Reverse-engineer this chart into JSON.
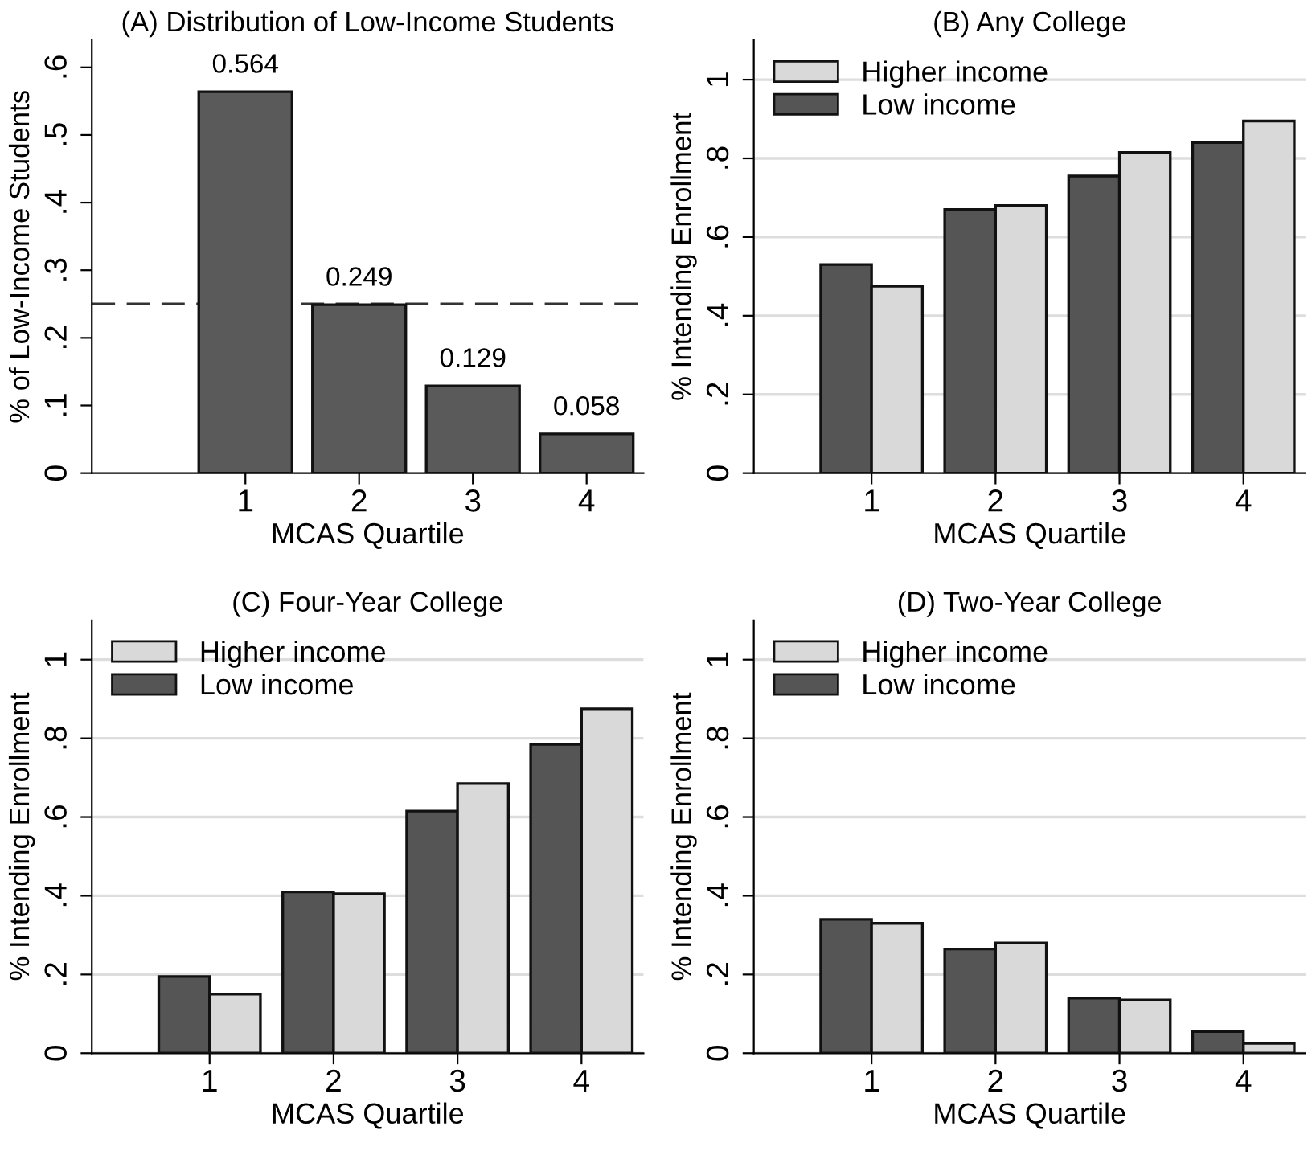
{
  "chart_data": [
    {
      "type": "bar",
      "title": "(A) Distribution of Low-Income Students",
      "xlabel": "MCAS Quartile",
      "ylabel": "% of Low-Income Students",
      "categories": [
        "1",
        "2",
        "3",
        "4"
      ],
      "values": [
        0.564,
        0.249,
        0.129,
        0.058
      ],
      "color": "#5a5a5a",
      "data_labels": true,
      "ylim": [
        0,
        0.64
      ],
      "yticks": [
        0,
        {
          "value": 0.1,
          "label": ".1"
        },
        {
          "value": 0.2,
          "label": ".2"
        },
        {
          "value": 0.3,
          "label": ".3"
        },
        {
          "value": 0.4,
          "label": ".4"
        },
        {
          "value": 0.5,
          "label": ".5"
        },
        {
          "value": 0.6,
          "label": ".6"
        }
      ],
      "ref_lines": [
        {
          "axis": "y",
          "value": 0.25,
          "line_style": "dashed",
          "color": "#333333"
        }
      ],
      "grid": false,
      "legend": false
    },
    {
      "type": "bar",
      "title": "(B) Any College",
      "xlabel": "MCAS Quartile",
      "ylabel": "% Intending Enrollment",
      "categories": [
        "1",
        "2",
        "3",
        "4"
      ],
      "series": [
        {
          "name": "Low income",
          "color": "#555555",
          "values": [
            0.53,
            0.67,
            0.755,
            0.84
          ]
        },
        {
          "name": "Higher income",
          "color": "#d9d9d9",
          "values": [
            0.475,
            0.68,
            0.815,
            0.895
          ]
        }
      ],
      "ylim": [
        0,
        1.1
      ],
      "yticks": [
        0,
        {
          "value": 0.2,
          "label": ".2"
        },
        {
          "value": 0.4,
          "label": ".4"
        },
        {
          "value": 0.6,
          "label": ".6"
        },
        {
          "value": 0.8,
          "label": ".8"
        },
        1
      ],
      "grid": "y",
      "legend": "top left"
    },
    {
      "type": "bar",
      "title": "(C) Four-Year College",
      "xlabel": "MCAS Quartile",
      "ylabel": "% Intending Enrollment",
      "categories": [
        "1",
        "2",
        "3",
        "4"
      ],
      "series": [
        {
          "name": "Low income",
          "color": "#555555",
          "values": [
            0.195,
            0.41,
            0.615,
            0.785
          ]
        },
        {
          "name": "Higher income",
          "color": "#d9d9d9",
          "values": [
            0.15,
            0.405,
            0.685,
            0.875
          ]
        }
      ],
      "ylim": [
        0,
        1.1
      ],
      "yticks": [
        0,
        {
          "value": 0.2,
          "label": ".2"
        },
        {
          "value": 0.4,
          "label": ".4"
        },
        {
          "value": 0.6,
          "label": ".6"
        },
        {
          "value": 0.8,
          "label": ".8"
        },
        1
      ],
      "grid": "y",
      "legend": "top left"
    },
    {
      "type": "bar",
      "title": "(D) Two-Year College",
      "xlabel": "MCAS Quartile",
      "ylabel": "% Intending Enrollment",
      "categories": [
        "1",
        "2",
        "3",
        "4"
      ],
      "series": [
        {
          "name": "Low income",
          "color": "#555555",
          "values": [
            0.34,
            0.265,
            0.14,
            0.055
          ]
        },
        {
          "name": "Higher income",
          "color": "#d9d9d9",
          "values": [
            0.33,
            0.28,
            0.135,
            0.025
          ]
        }
      ],
      "ylim": [
        0,
        1.1
      ],
      "yticks": [
        0,
        {
          "value": 0.2,
          "label": ".2"
        },
        {
          "value": 0.4,
          "label": ".4"
        },
        {
          "value": 0.6,
          "label": ".6"
        },
        {
          "value": 0.8,
          "label": ".8"
        },
        1
      ],
      "grid": "y",
      "legend": "top left"
    }
  ]
}
